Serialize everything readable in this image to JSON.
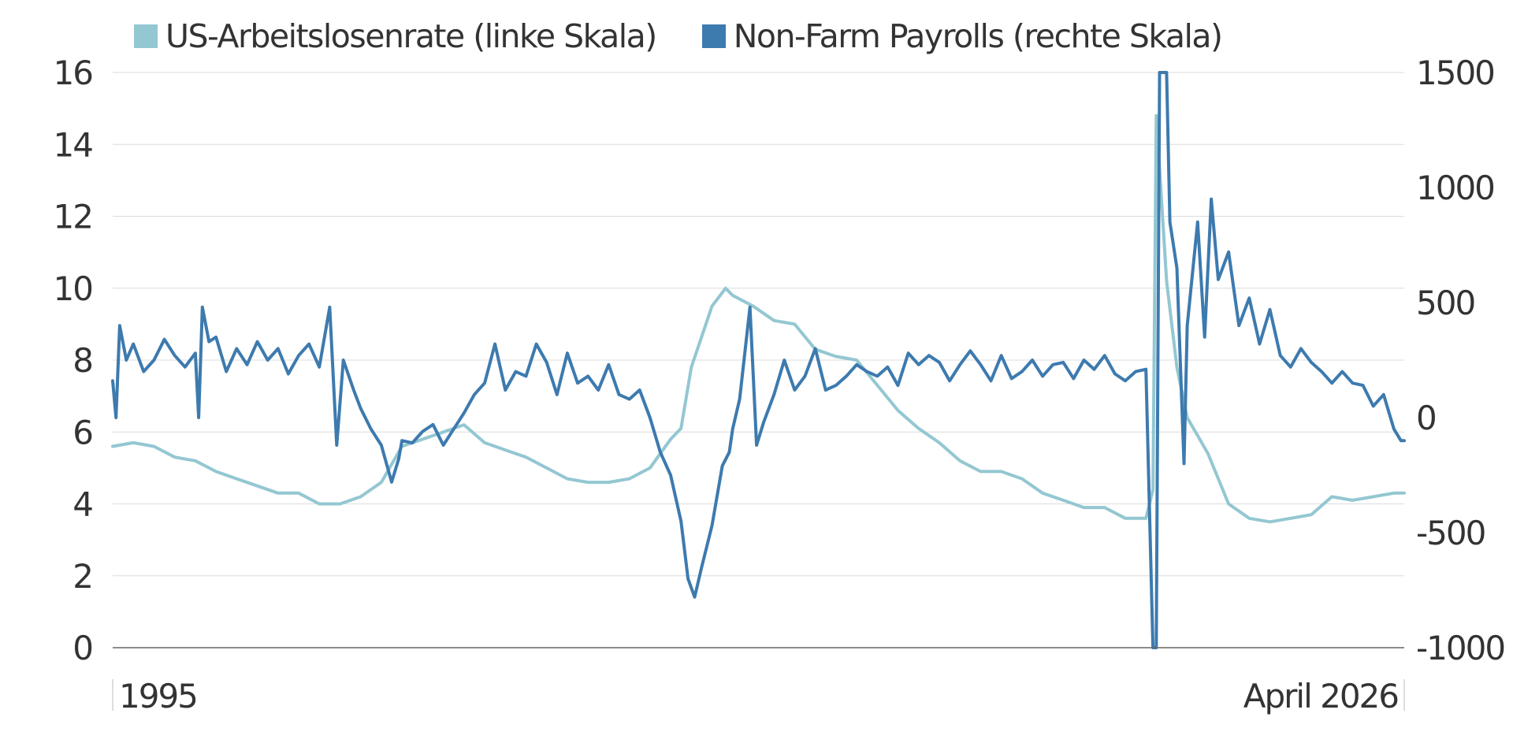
{
  "chart_data": {
    "type": "line",
    "start_label": "1995",
    "end_label": "April 2026",
    "series": [
      {
        "name": "US-Arbeitslosenrate (linke Skala)",
        "axis": "left",
        "color": "#93c7d2",
        "points": [
          [
            1995.0,
            5.6
          ],
          [
            1995.5,
            5.7
          ],
          [
            1996.0,
            5.6
          ],
          [
            1996.5,
            5.3
          ],
          [
            1997.0,
            5.2
          ],
          [
            1997.5,
            4.9
          ],
          [
            1998.0,
            4.7
          ],
          [
            1998.5,
            4.5
          ],
          [
            1999.0,
            4.3
          ],
          [
            1999.5,
            4.3
          ],
          [
            2000.0,
            4.0
          ],
          [
            2000.5,
            4.0
          ],
          [
            2001.0,
            4.2
          ],
          [
            2001.5,
            4.6
          ],
          [
            2002.0,
            5.6
          ],
          [
            2002.5,
            5.8
          ],
          [
            2003.0,
            6.0
          ],
          [
            2003.5,
            6.2
          ],
          [
            2004.0,
            5.7
          ],
          [
            2004.5,
            5.5
          ],
          [
            2005.0,
            5.3
          ],
          [
            2005.5,
            5.0
          ],
          [
            2006.0,
            4.7
          ],
          [
            2006.5,
            4.6
          ],
          [
            2007.0,
            4.6
          ],
          [
            2007.5,
            4.7
          ],
          [
            2008.0,
            5.0
          ],
          [
            2008.5,
            5.8
          ],
          [
            2008.75,
            6.1
          ],
          [
            2009.0,
            7.8
          ],
          [
            2009.5,
            9.5
          ],
          [
            2009.83,
            10.0
          ],
          [
            2010.0,
            9.8
          ],
          [
            2010.5,
            9.5
          ],
          [
            2011.0,
            9.1
          ],
          [
            2011.5,
            9.0
          ],
          [
            2012.0,
            8.3
          ],
          [
            2012.5,
            8.1
          ],
          [
            2013.0,
            8.0
          ],
          [
            2013.5,
            7.3
          ],
          [
            2014.0,
            6.6
          ],
          [
            2014.5,
            6.1
          ],
          [
            2015.0,
            5.7
          ],
          [
            2015.5,
            5.2
          ],
          [
            2016.0,
            4.9
          ],
          [
            2016.5,
            4.9
          ],
          [
            2017.0,
            4.7
          ],
          [
            2017.5,
            4.3
          ],
          [
            2018.0,
            4.1
          ],
          [
            2018.5,
            3.9
          ],
          [
            2019.0,
            3.9
          ],
          [
            2019.5,
            3.6
          ],
          [
            2020.0,
            3.6
          ],
          [
            2020.17,
            4.4
          ],
          [
            2020.25,
            14.8
          ],
          [
            2020.5,
            10.2
          ],
          [
            2020.75,
            7.8
          ],
          [
            2021.0,
            6.4
          ],
          [
            2021.5,
            5.4
          ],
          [
            2022.0,
            4.0
          ],
          [
            2022.5,
            3.6
          ],
          [
            2023.0,
            3.5
          ],
          [
            2023.5,
            3.6
          ],
          [
            2024.0,
            3.7
          ],
          [
            2024.5,
            4.2
          ],
          [
            2025.0,
            4.1
          ],
          [
            2025.5,
            4.2
          ],
          [
            2026.0,
            4.3
          ],
          [
            2026.25,
            4.3
          ]
        ]
      },
      {
        "name": "Non-Farm Payrolls (rechte Skala)",
        "axis": "right",
        "color": "#3d7aae",
        "points": [
          [
            1995.0,
            160
          ],
          [
            1995.08,
            0
          ],
          [
            1995.17,
            400
          ],
          [
            1995.33,
            250
          ],
          [
            1995.5,
            320
          ],
          [
            1995.75,
            200
          ],
          [
            1996.0,
            250
          ],
          [
            1996.25,
            340
          ],
          [
            1996.5,
            270
          ],
          [
            1996.75,
            220
          ],
          [
            1997.0,
            280
          ],
          [
            1997.08,
            0
          ],
          [
            1997.17,
            480
          ],
          [
            1997.33,
            330
          ],
          [
            1997.5,
            350
          ],
          [
            1997.75,
            200
          ],
          [
            1998.0,
            300
          ],
          [
            1998.25,
            230
          ],
          [
            1998.5,
            330
          ],
          [
            1998.75,
            250
          ],
          [
            1999.0,
            300
          ],
          [
            1999.25,
            190
          ],
          [
            1999.5,
            270
          ],
          [
            1999.75,
            320
          ],
          [
            2000.0,
            220
          ],
          [
            2000.25,
            480
          ],
          [
            2000.42,
            -120
          ],
          [
            2000.58,
            250
          ],
          [
            2000.83,
            120
          ],
          [
            2001.0,
            40
          ],
          [
            2001.25,
            -50
          ],
          [
            2001.5,
            -120
          ],
          [
            2001.75,
            -280
          ],
          [
            2001.92,
            -180
          ],
          [
            2002.0,
            -100
          ],
          [
            2002.25,
            -110
          ],
          [
            2002.5,
            -60
          ],
          [
            2002.75,
            -30
          ],
          [
            2003.0,
            -120
          ],
          [
            2003.25,
            -50
          ],
          [
            2003.5,
            20
          ],
          [
            2003.75,
            100
          ],
          [
            2004.0,
            150
          ],
          [
            2004.25,
            320
          ],
          [
            2004.5,
            120
          ],
          [
            2004.75,
            200
          ],
          [
            2005.0,
            180
          ],
          [
            2005.25,
            320
          ],
          [
            2005.5,
            240
          ],
          [
            2005.75,
            100
          ],
          [
            2006.0,
            280
          ],
          [
            2006.25,
            150
          ],
          [
            2006.5,
            180
          ],
          [
            2006.75,
            120
          ],
          [
            2007.0,
            230
          ],
          [
            2007.25,
            100
          ],
          [
            2007.5,
            80
          ],
          [
            2007.75,
            120
          ],
          [
            2008.0,
            0
          ],
          [
            2008.25,
            -150
          ],
          [
            2008.5,
            -250
          ],
          [
            2008.75,
            -450
          ],
          [
            2008.92,
            -700
          ],
          [
            2009.08,
            -780
          ],
          [
            2009.25,
            -650
          ],
          [
            2009.5,
            -470
          ],
          [
            2009.75,
            -210
          ],
          [
            2009.92,
            -150
          ],
          [
            2010.0,
            -50
          ],
          [
            2010.17,
            80
          ],
          [
            2010.42,
            480
          ],
          [
            2010.58,
            -120
          ],
          [
            2010.75,
            -20
          ],
          [
            2011.0,
            100
          ],
          [
            2011.25,
            250
          ],
          [
            2011.5,
            120
          ],
          [
            2011.75,
            180
          ],
          [
            2012.0,
            300
          ],
          [
            2012.25,
            120
          ],
          [
            2012.5,
            140
          ],
          [
            2012.75,
            180
          ],
          [
            2013.0,
            230
          ],
          [
            2013.25,
            200
          ],
          [
            2013.5,
            180
          ],
          [
            2013.75,
            220
          ],
          [
            2014.0,
            140
          ],
          [
            2014.25,
            280
          ],
          [
            2014.5,
            230
          ],
          [
            2014.75,
            270
          ],
          [
            2015.0,
            240
          ],
          [
            2015.25,
            160
          ],
          [
            2015.5,
            230
          ],
          [
            2015.75,
            290
          ],
          [
            2016.0,
            230
          ],
          [
            2016.25,
            160
          ],
          [
            2016.5,
            270
          ],
          [
            2016.75,
            170
          ],
          [
            2017.0,
            200
          ],
          [
            2017.25,
            250
          ],
          [
            2017.5,
            180
          ],
          [
            2017.75,
            230
          ],
          [
            2018.0,
            240
          ],
          [
            2018.25,
            170
          ],
          [
            2018.5,
            250
          ],
          [
            2018.75,
            210
          ],
          [
            2019.0,
            270
          ],
          [
            2019.25,
            190
          ],
          [
            2019.5,
            160
          ],
          [
            2019.75,
            200
          ],
          [
            2020.0,
            210
          ],
          [
            2020.17,
            -1000
          ],
          [
            2020.25,
            -1000
          ],
          [
            2020.33,
            1500
          ],
          [
            2020.5,
            1500
          ],
          [
            2020.58,
            850
          ],
          [
            2020.75,
            650
          ],
          [
            2020.92,
            -200
          ],
          [
            2021.0,
            400
          ],
          [
            2021.25,
            850
          ],
          [
            2021.42,
            350
          ],
          [
            2021.58,
            950
          ],
          [
            2021.75,
            600
          ],
          [
            2022.0,
            720
          ],
          [
            2022.25,
            400
          ],
          [
            2022.5,
            520
          ],
          [
            2022.75,
            320
          ],
          [
            2023.0,
            470
          ],
          [
            2023.25,
            270
          ],
          [
            2023.5,
            220
          ],
          [
            2023.75,
            300
          ],
          [
            2024.0,
            240
          ],
          [
            2024.25,
            200
          ],
          [
            2024.5,
            150
          ],
          [
            2024.75,
            200
          ],
          [
            2025.0,
            150
          ],
          [
            2025.25,
            140
          ],
          [
            2025.5,
            50
          ],
          [
            2025.75,
            100
          ],
          [
            2026.0,
            -50
          ],
          [
            2026.17,
            -100
          ],
          [
            2026.25,
            -100
          ]
        ]
      }
    ],
    "left_axis": {
      "ticks": [
        0,
        2,
        4,
        6,
        8,
        10,
        12,
        14,
        16
      ],
      "min": 0,
      "max": 16
    },
    "right_axis": {
      "ticks": [
        -1000,
        -500,
        0,
        500,
        1000,
        1500
      ],
      "min": -1000,
      "max": 1500
    },
    "x_range": [
      1995.0,
      2026.25
    ],
    "grid": true,
    "legend_position": "top-left"
  }
}
